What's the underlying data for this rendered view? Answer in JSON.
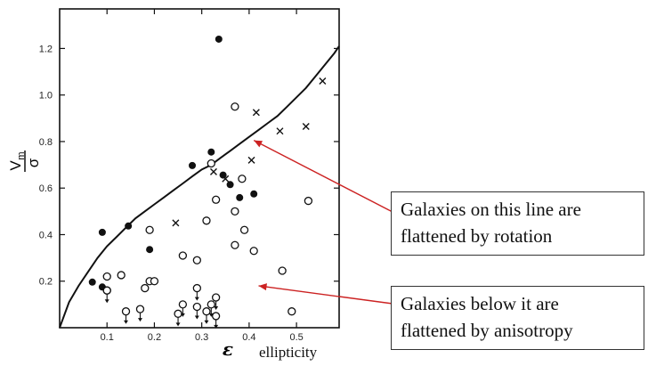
{
  "chart_data": {
    "type": "scatter",
    "title": "",
    "xlabel": "ε",
    "ylabel_num": "V",
    "ylabel_sub": "m",
    "ylabel_den": "σ",
    "xlim": [
      0,
      0.59
    ],
    "ylim": [
      0,
      1.37
    ],
    "x_ticks": [
      {
        "value": 0.1,
        "label": "0.1"
      },
      {
        "value": 0.2,
        "label": "0.2"
      },
      {
        "value": 0.3,
        "label": "0.3"
      },
      {
        "value": 0.4,
        "label": "0.4"
      },
      {
        "value": 0.5,
        "label": "0.5"
      }
    ],
    "y_ticks": [
      {
        "value": 0.2,
        "label": "0.2"
      },
      {
        "value": 0.4,
        "label": "0.4"
      },
      {
        "value": 0.6,
        "label": "0.6"
      },
      {
        "value": 0.8,
        "label": "0.8"
      },
      {
        "value": 1.0,
        "label": "1.0"
      },
      {
        "value": 1.2,
        "label": "1.2"
      }
    ],
    "grid": false,
    "series": [
      {
        "marker": "filled-circle",
        "points": [
          [
            0.336,
            1.24
          ],
          [
            0.069,
            0.196
          ],
          [
            0.09,
            0.175
          ],
          [
            0.09,
            0.41
          ],
          [
            0.145,
            0.437
          ],
          [
            0.19,
            0.336
          ],
          [
            0.28,
            0.697
          ],
          [
            0.32,
            0.755
          ],
          [
            0.345,
            0.656
          ],
          [
            0.36,
            0.615
          ],
          [
            0.38,
            0.559
          ],
          [
            0.41,
            0.575
          ]
        ]
      },
      {
        "marker": "open-circle",
        "points": [
          [
            0.1,
            0.16
          ],
          [
            0.1,
            0.22
          ],
          [
            0.13,
            0.226
          ],
          [
            0.18,
            0.17
          ],
          [
            0.19,
            0.2
          ],
          [
            0.2,
            0.2
          ],
          [
            0.19,
            0.42
          ],
          [
            0.26,
            0.31
          ],
          [
            0.29,
            0.29
          ],
          [
            0.32,
            0.706
          ],
          [
            0.33,
            0.55
          ],
          [
            0.31,
            0.46
          ],
          [
            0.37,
            0.95
          ],
          [
            0.37,
            0.5
          ],
          [
            0.37,
            0.355
          ],
          [
            0.385,
            0.64
          ],
          [
            0.39,
            0.42
          ],
          [
            0.41,
            0.33
          ],
          [
            0.47,
            0.245
          ],
          [
            0.49,
            0.07
          ],
          [
            0.525,
            0.545
          ]
        ]
      },
      {
        "marker": "open-circle-upper-limit",
        "points": [
          [
            0.1,
            0.16
          ],
          [
            0.14,
            0.07
          ],
          [
            0.17,
            0.08
          ],
          [
            0.25,
            0.06
          ],
          [
            0.26,
            0.1
          ],
          [
            0.29,
            0.17
          ],
          [
            0.29,
            0.09
          ],
          [
            0.31,
            0.07
          ],
          [
            0.32,
            0.1
          ],
          [
            0.33,
            0.13
          ],
          [
            0.33,
            0.05
          ]
        ]
      },
      {
        "marker": "cross",
        "points": [
          [
            0.245,
            0.45
          ],
          [
            0.325,
            0.67
          ],
          [
            0.35,
            0.64
          ],
          [
            0.405,
            0.72
          ],
          [
            0.415,
            0.925
          ],
          [
            0.465,
            0.845
          ],
          [
            0.52,
            0.865
          ],
          [
            0.555,
            1.06
          ]
        ]
      }
    ],
    "curve": {
      "name": "",
      "x": [
        0.0,
        0.02,
        0.04,
        0.06,
        0.08,
        0.1,
        0.12,
        0.14,
        0.16,
        0.18,
        0.2,
        0.22,
        0.24,
        0.26,
        0.28,
        0.3,
        0.32,
        0.34,
        0.36,
        0.38,
        0.4,
        0.42,
        0.44,
        0.46,
        0.48,
        0.5,
        0.52,
        0.54,
        0.56,
        0.58,
        0.59
      ],
      "y": [
        0.0,
        0.11,
        0.18,
        0.24,
        0.3,
        0.35,
        0.39,
        0.43,
        0.47,
        0.5,
        0.53,
        0.56,
        0.59,
        0.62,
        0.65,
        0.68,
        0.7,
        0.73,
        0.76,
        0.79,
        0.82,
        0.85,
        0.88,
        0.91,
        0.95,
        0.99,
        1.03,
        1.08,
        1.13,
        1.18,
        1.21
      ]
    },
    "annotations": [
      {
        "line1": "Galaxies on this line are",
        "line2": "flattened by rotation",
        "points_to": [
          0.41,
          0.805
        ]
      },
      {
        "line1": "Galaxies below it are",
        "line2": "flattened by anisotropy",
        "points_to": [
          0.42,
          0.18
        ]
      }
    ],
    "xlabel_extra": "ellipticity"
  },
  "colors": {
    "ink": "#111111",
    "arrow": "#cc2222"
  }
}
